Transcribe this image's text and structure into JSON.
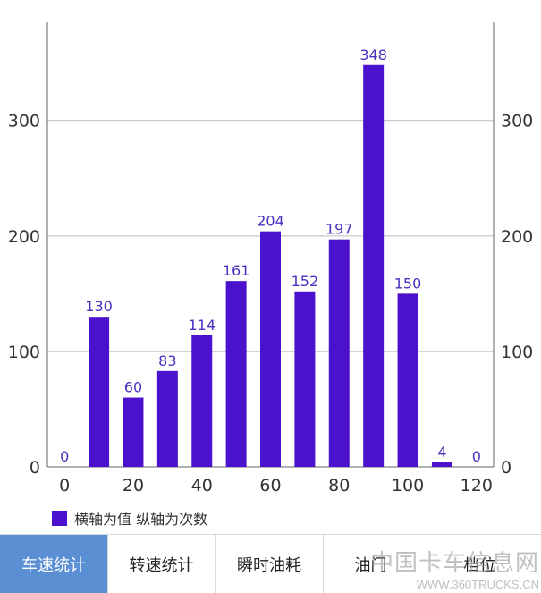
{
  "chart_data": {
    "type": "bar",
    "x": [
      0,
      10,
      20,
      30,
      40,
      50,
      60,
      70,
      80,
      90,
      100,
      110,
      120
    ],
    "values": [
      0,
      130,
      60,
      83,
      114,
      161,
      204,
      152,
      197,
      348,
      150,
      4,
      0
    ],
    "x_ticks": [
      "0",
      "20",
      "40",
      "60",
      "80",
      "100",
      "120"
    ],
    "y_ticks_left": [
      "0",
      "100",
      "200",
      "300"
    ],
    "y_ticks_right": [
      "0",
      "100",
      "200",
      "300"
    ],
    "ylim": [
      0,
      385
    ],
    "xlim": [
      -5,
      125
    ],
    "grid": "horizontal",
    "legend": {
      "label": "横轴为值 纵轴为次数",
      "placement": "bottom-left"
    },
    "bar_color": "#4a12cc",
    "label_color": "#4a30c0"
  },
  "tabs": [
    {
      "label": "车速统计",
      "active": true
    },
    {
      "label": "转速统计",
      "active": false
    },
    {
      "label": "瞬时油耗",
      "active": false
    },
    {
      "label": "油门",
      "active": false
    },
    {
      "label": "档位",
      "active": false
    }
  ],
  "watermark": {
    "text": "中国卡车信息网",
    "url": "WWW.360TRUCKS.CN"
  },
  "colors": {
    "active_tab": "#5a8fd4",
    "grid": "#bbbbbb",
    "axis": "#666666"
  }
}
